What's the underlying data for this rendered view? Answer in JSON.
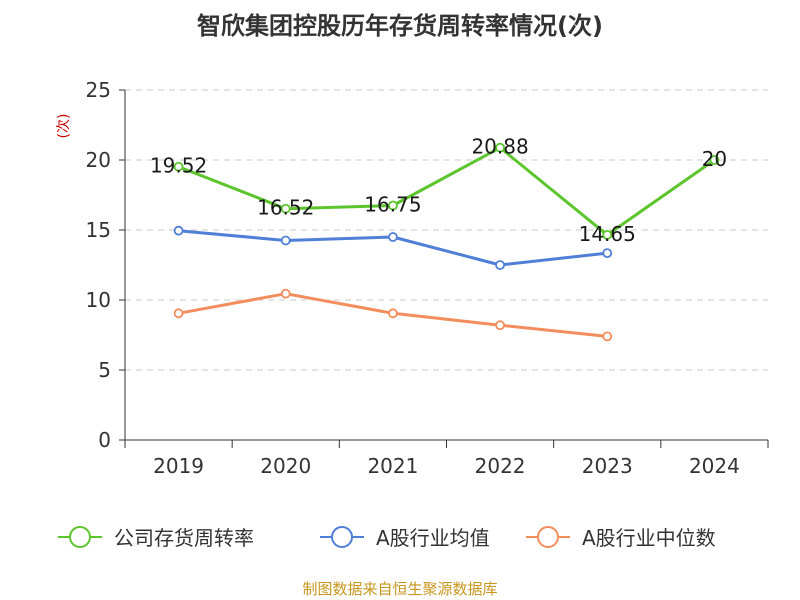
{
  "chart_data": {
    "type": "line",
    "title": "智欣集团控股历年存货周转率情况(次)",
    "ylabel": "(次)",
    "categories": [
      "2019",
      "2020",
      "2021",
      "2022",
      "2023",
      "2024"
    ],
    "ylim": [
      0,
      25
    ],
    "yticks": [
      0,
      5,
      10,
      15,
      20,
      25
    ],
    "grid": true,
    "legend_position": "bottom",
    "series": [
      {
        "name": "公司存货周转率",
        "color": "#5cc52d",
        "values": [
          19.52,
          16.52,
          16.75,
          20.88,
          14.65,
          20
        ],
        "labels": [
          "19.52",
          "16.52",
          "16.75",
          "20.88",
          "14.65",
          "20"
        ]
      },
      {
        "name": "A股行业均值",
        "color": "#4f7fd6",
        "values": [
          14.95,
          14.25,
          14.5,
          12.5,
          13.35,
          null
        ]
      },
      {
        "name": "A股行业中位数",
        "color": "#f48d5d",
        "values": [
          9.05,
          10.45,
          9.05,
          8.2,
          7.4,
          null
        ]
      }
    ]
  },
  "source": "制图数据来自恒生聚源数据库"
}
